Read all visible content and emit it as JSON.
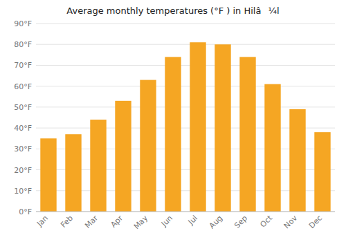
{
  "chart_data": {
    "type": "bar",
    "title": "Average monthly temperatures (°F ) in Hilâ¼l",
    "categories": [
      "Jan",
      "Feb",
      "Mar",
      "Apr",
      "May",
      "Jun",
      "Jul",
      "Aug",
      "Sep",
      "Oct",
      "Nov",
      "Dec"
    ],
    "values": [
      35,
      37,
      44,
      53,
      63,
      74,
      81,
      80,
      74,
      61,
      49,
      38
    ],
    "color": "#F5A623",
    "ylim": [
      0,
      90
    ],
    "yticks": [
      {
        "value": 0,
        "label": "0°F"
      },
      {
        "value": 10,
        "label": "10°F"
      },
      {
        "value": 20,
        "label": "20°F"
      },
      {
        "value": 30,
        "label": "30°F"
      },
      {
        "value": 40,
        "label": "40°F"
      },
      {
        "value": 50,
        "label": "50°F"
      },
      {
        "value": 60,
        "label": "60°F"
      },
      {
        "value": 70,
        "label": "70°F"
      },
      {
        "value": 80,
        "label": "80°F"
      },
      {
        "value": 90,
        "label": "90°F"
      }
    ],
    "grid": true
  }
}
